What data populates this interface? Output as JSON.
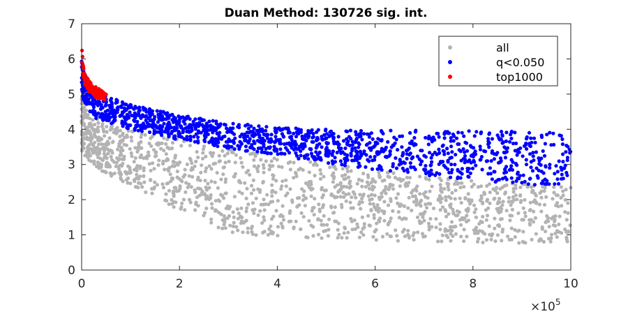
{
  "chart_data": {
    "type": "scatter",
    "title": "Duan Method: 130726 sig. int.",
    "xlabel": "",
    "ylabel": "",
    "xlim": [
      0,
      1000000
    ],
    "ylim": [
      0,
      7
    ],
    "x_ticks": [
      0,
      200000,
      400000,
      600000,
      800000,
      1000000
    ],
    "x_tick_labels": [
      "0",
      "2",
      "4",
      "6",
      "8",
      "10"
    ],
    "x_exponent_label": "×10",
    "x_exponent_power": "5",
    "y_ticks": [
      0,
      1,
      2,
      3,
      4,
      5,
      6,
      7
    ],
    "y_tick_labels": [
      "0",
      "1",
      "2",
      "3",
      "4",
      "5",
      "6",
      "7"
    ],
    "grid": false,
    "legend_position": "top-right",
    "series": [
      {
        "name": "all",
        "color": "#b3b3b3",
        "upper": [
          [
            0,
            5.0
          ],
          [
            10000,
            4.6
          ],
          [
            30000,
            4.3
          ],
          [
            60000,
            4.15
          ],
          [
            100000,
            4.0
          ],
          [
            200000,
            3.7
          ],
          [
            300000,
            3.45
          ],
          [
            400000,
            3.25
          ],
          [
            500000,
            3.05
          ],
          [
            600000,
            2.85
          ],
          [
            700000,
            2.7
          ],
          [
            800000,
            2.55
          ],
          [
            900000,
            2.45
          ],
          [
            1000000,
            2.35
          ]
        ],
        "lower": [
          [
            0,
            3.4
          ],
          [
            10000,
            3.1
          ],
          [
            30000,
            2.95
          ],
          [
            60000,
            2.6
          ],
          [
            100000,
            2.4
          ],
          [
            200000,
            1.7
          ],
          [
            300000,
            1.05
          ],
          [
            400000,
            0.95
          ],
          [
            500000,
            0.9
          ],
          [
            600000,
            0.85
          ],
          [
            700000,
            0.8
          ],
          [
            800000,
            0.78
          ],
          [
            900000,
            0.77
          ],
          [
            1000000,
            0.75
          ]
        ]
      },
      {
        "name": "q<0.050",
        "color": "#0000ff",
        "upper": [
          [
            0,
            6.1
          ],
          [
            5000,
            5.6
          ],
          [
            20000,
            5.2
          ],
          [
            50000,
            4.95
          ],
          [
            100000,
            4.7
          ],
          [
            150000,
            4.55
          ],
          [
            200000,
            4.4
          ],
          [
            300000,
            4.2
          ],
          [
            400000,
            4.05
          ],
          [
            500000,
            4.0
          ],
          [
            600000,
            3.98
          ],
          [
            800000,
            3.95
          ],
          [
            1000000,
            3.92
          ]
        ],
        "lower": [
          [
            0,
            5.0
          ],
          [
            10000,
            4.6
          ],
          [
            30000,
            4.3
          ],
          [
            60000,
            4.15
          ],
          [
            100000,
            4.0
          ],
          [
            200000,
            3.7
          ],
          [
            300000,
            3.45
          ],
          [
            400000,
            3.25
          ],
          [
            500000,
            3.05
          ],
          [
            600000,
            2.85
          ],
          [
            700000,
            2.7
          ],
          [
            800000,
            2.55
          ],
          [
            900000,
            2.45
          ],
          [
            1000000,
            2.35
          ]
        ]
      },
      {
        "name": "top1000",
        "color": "#ff0000",
        "upper": [
          [
            0,
            6.45
          ],
          [
            5000,
            5.6
          ],
          [
            15000,
            5.4
          ],
          [
            30000,
            5.2
          ],
          [
            50000,
            5.05
          ]
        ],
        "lower": [
          [
            0,
            5.9
          ],
          [
            5000,
            5.3
          ],
          [
            15000,
            5.05
          ],
          [
            30000,
            4.9
          ],
          [
            50000,
            4.8
          ]
        ]
      }
    ]
  }
}
